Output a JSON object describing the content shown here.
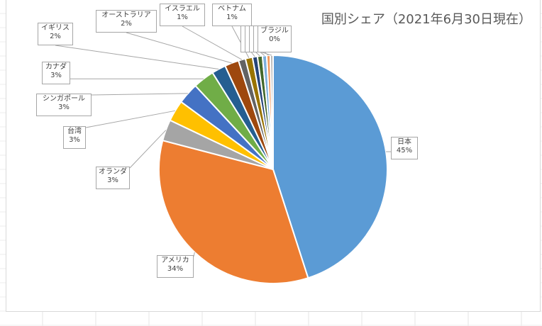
{
  "chart_data": {
    "type": "pie",
    "title": "国別シェア（2021年6月30日現在）",
    "categories": [
      "日本",
      "アメリカ",
      "オランダ",
      "台湾",
      "シンガポール",
      "カナダ",
      "イギリス",
      "オーストラリア",
      "イスラエル",
      "ベトナム",
      "",
      "",
      "",
      "",
      "ブラジル"
    ],
    "values": [
      45,
      34,
      3,
      3,
      3,
      3,
      2,
      2,
      1,
      1,
      0.7,
      0.7,
      0.6,
      0.5,
      0.4
    ],
    "data_labels": [
      "45%",
      "34%",
      "3%",
      "3%",
      "3%",
      "3%",
      "2%",
      "2%",
      "1%",
      "1%",
      "",
      "",
      "",
      "",
      "0%"
    ],
    "colors": [
      "#5b9bd5",
      "#ed7d31",
      "#a5a5a5",
      "#ffc000",
      "#4472c4",
      "#70ad47",
      "#255e91",
      "#9e480e",
      "#636363",
      "#997300",
      "#264478",
      "#43682b",
      "#7cafdd",
      "#f1975a",
      "#b7b7b7"
    ],
    "legend": "none"
  }
}
